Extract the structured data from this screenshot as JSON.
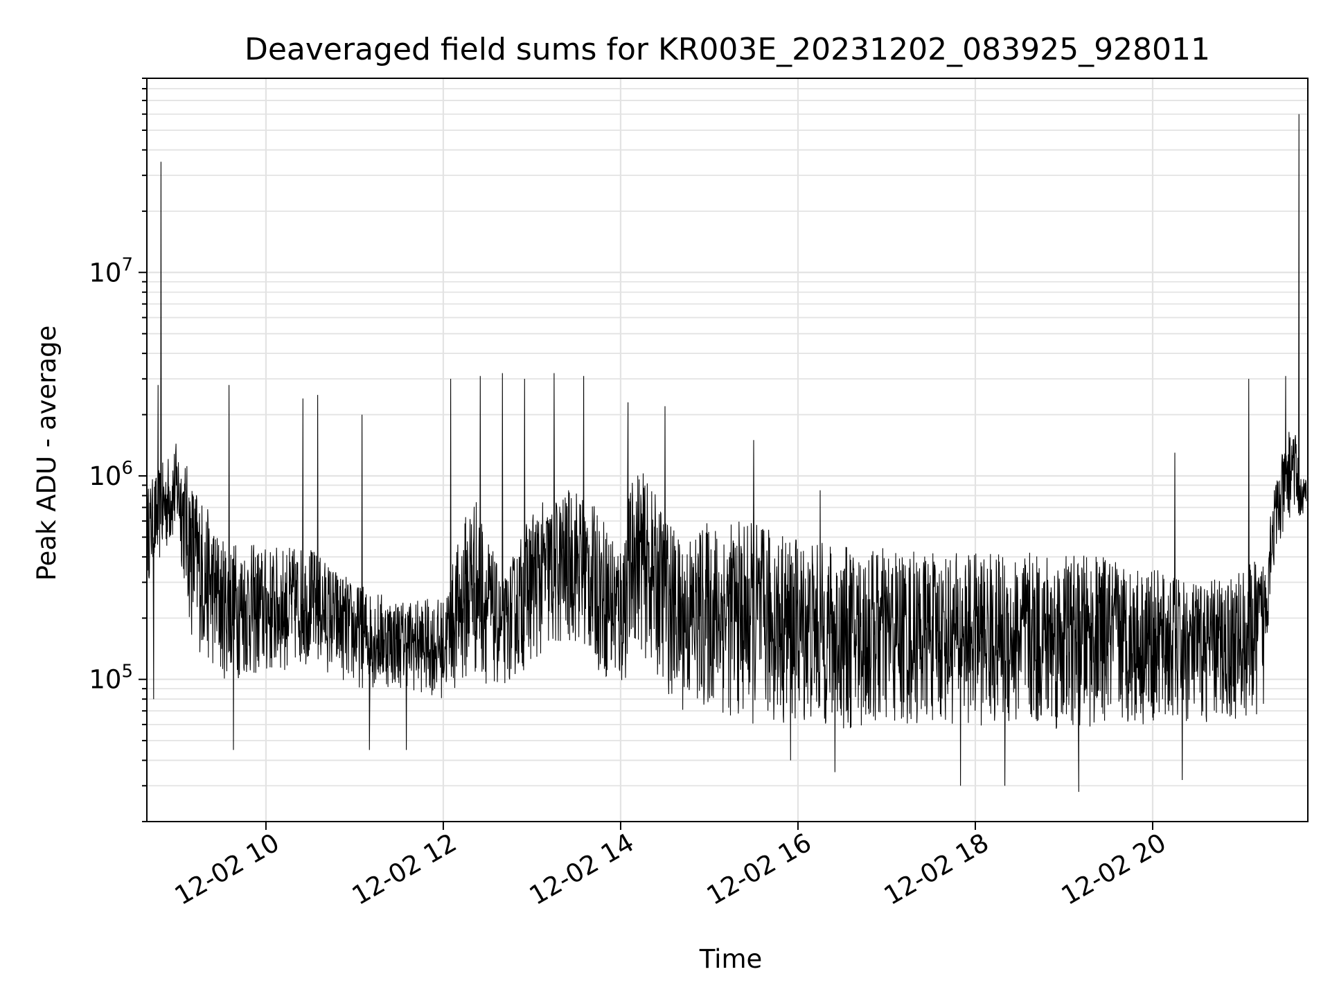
{
  "chart_data": {
    "type": "line",
    "title": "Deaveraged field sums for KR003E_20231202_083925_928011",
    "xlabel": "Time",
    "ylabel": "Peak ADU - average",
    "y_scale": "log",
    "grid": true,
    "grid_minor": true,
    "x_range": [
      "2023-12-02 08:39:25",
      "2023-12-02 21:45:00"
    ],
    "y_range": [
      20000,
      90000000
    ],
    "x_ticks": [
      {
        "value": "2023-12-02 10:00",
        "label": "12-02 10"
      },
      {
        "value": "2023-12-02 12:00",
        "label": "12-02 12"
      },
      {
        "value": "2023-12-02 14:00",
        "label": "12-02 14"
      },
      {
        "value": "2023-12-02 16:00",
        "label": "12-02 16"
      },
      {
        "value": "2023-12-02 18:00",
        "label": "12-02 18"
      },
      {
        "value": "2023-12-02 20:00",
        "label": "12-02 20"
      }
    ],
    "y_ticks": [
      {
        "value": 100000,
        "base": "10",
        "exp": "5"
      },
      {
        "value": 1000000,
        "base": "10",
        "exp": "6"
      },
      {
        "value": 10000000,
        "base": "10",
        "exp": "7"
      }
    ],
    "series": [
      {
        "color": "#000000",
        "envelope": [
          {
            "t": "08:40",
            "low": 300000,
            "high": 900000
          },
          {
            "t": "09:00",
            "low": 500000,
            "high": 1500000
          },
          {
            "t": "09:10",
            "low": 150000,
            "high": 1000000
          },
          {
            "t": "09:30",
            "low": 100000,
            "high": 500000
          },
          {
            "t": "10:00",
            "low": 100000,
            "high": 450000
          },
          {
            "t": "10:30",
            "low": 120000,
            "high": 450000
          },
          {
            "t": "11:00",
            "low": 90000,
            "high": 300000
          },
          {
            "t": "11:30",
            "low": 90000,
            "high": 250000
          },
          {
            "t": "12:00",
            "low": 80000,
            "high": 250000
          },
          {
            "t": "12:20",
            "low": 100000,
            "high": 900000
          },
          {
            "t": "12:40",
            "low": 90000,
            "high": 300000
          },
          {
            "t": "13:00",
            "low": 120000,
            "high": 700000
          },
          {
            "t": "13:30",
            "low": 150000,
            "high": 900000
          },
          {
            "t": "14:00",
            "low": 80000,
            "high": 500000
          },
          {
            "t": "14:10",
            "low": 150000,
            "high": 1200000
          },
          {
            "t": "14:40",
            "low": 70000,
            "high": 500000
          },
          {
            "t": "15:00",
            "low": 70000,
            "high": 600000
          },
          {
            "t": "15:30",
            "low": 60000,
            "high": 600000
          },
          {
            "t": "16:00",
            "low": 60000,
            "high": 500000
          },
          {
            "t": "16:30",
            "low": 55000,
            "high": 450000
          },
          {
            "t": "17:00",
            "low": 55000,
            "high": 450000
          },
          {
            "t": "17:30",
            "low": 60000,
            "high": 420000
          },
          {
            "t": "18:00",
            "low": 60000,
            "high": 420000
          },
          {
            "t": "18:30",
            "low": 55000,
            "high": 420000
          },
          {
            "t": "19:00",
            "low": 55000,
            "high": 420000
          },
          {
            "t": "19:30",
            "low": 60000,
            "high": 400000
          },
          {
            "t": "20:00",
            "low": 60000,
            "high": 350000
          },
          {
            "t": "20:30",
            "low": 60000,
            "high": 300000
          },
          {
            "t": "21:00",
            "low": 60000,
            "high": 350000
          },
          {
            "t": "21:15",
            "low": 70000,
            "high": 400000
          },
          {
            "t": "21:20",
            "low": 300000,
            "high": 800000
          },
          {
            "t": "21:35",
            "low": 700000,
            "high": 2000000
          },
          {
            "t": "21:40",
            "low": 600000,
            "high": 1000000
          }
        ],
        "spikes": [
          {
            "t": "08:49",
            "value": 35000000
          },
          {
            "t": "08:47",
            "value": 2800000
          },
          {
            "t": "08:44",
            "value": 80000
          },
          {
            "t": "09:35",
            "value": 2800000
          },
          {
            "t": "09:38",
            "value": 45000
          },
          {
            "t": "10:25",
            "value": 2400000
          },
          {
            "t": "10:35",
            "value": 2500000
          },
          {
            "t": "11:05",
            "value": 2000000
          },
          {
            "t": "11:10",
            "value": 45000
          },
          {
            "t": "11:35",
            "value": 45000
          },
          {
            "t": "12:05",
            "value": 3000000
          },
          {
            "t": "12:25",
            "value": 3100000
          },
          {
            "t": "12:40",
            "value": 3200000
          },
          {
            "t": "12:55",
            "value": 3000000
          },
          {
            "t": "13:15",
            "value": 3200000
          },
          {
            "t": "13:35",
            "value": 3100000
          },
          {
            "t": "14:05",
            "value": 2300000
          },
          {
            "t": "14:30",
            "value": 2200000
          },
          {
            "t": "15:30",
            "value": 1500000
          },
          {
            "t": "15:55",
            "value": 40000
          },
          {
            "t": "16:15",
            "value": 850000
          },
          {
            "t": "16:25",
            "value": 35000
          },
          {
            "t": "17:50",
            "value": 30000
          },
          {
            "t": "18:20",
            "value": 30000
          },
          {
            "t": "19:10",
            "value": 28000
          },
          {
            "t": "20:15",
            "value": 1300000
          },
          {
            "t": "20:20",
            "value": 32000
          },
          {
            "t": "21:05",
            "value": 3000000
          },
          {
            "t": "21:30",
            "value": 3100000
          },
          {
            "t": "21:39",
            "value": 60000000
          }
        ]
      }
    ]
  }
}
